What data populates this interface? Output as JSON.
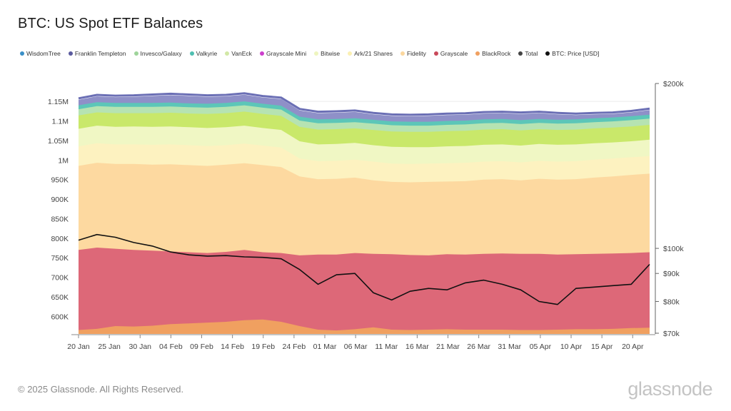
{
  "title": "BTC: US Spot ETF Balances",
  "footer": {
    "copyright": "© 2025 Glassnode. All Rights Reserved.",
    "brand": "glassnode"
  },
  "watermark": "glassnode",
  "legend": [
    {
      "label": "WisdomTree",
      "color": "#3a8fc7"
    },
    {
      "label": "Franklin Templeton",
      "color": "#5a5a9e"
    },
    {
      "label": "Invesco/Galaxy",
      "color": "#9ed49a"
    },
    {
      "label": "Valkyrie",
      "color": "#4fbfb1"
    },
    {
      "label": "VanEck",
      "color": "#d2e8a6"
    },
    {
      "label": "Grayscale Mini",
      "color": "#cc3fcc"
    },
    {
      "label": "Bitwise",
      "color": "#eef5bf"
    },
    {
      "label": "Ark/21 Shares",
      "color": "#fbf0b3"
    },
    {
      "label": "Fidelity",
      "color": "#fbd79e"
    },
    {
      "label": "Grayscale",
      "color": "#c9495a"
    },
    {
      "label": "BlackRock",
      "color": "#f0a060"
    },
    {
      "label": "Total",
      "color": "#444444"
    },
    {
      "label": "BTC: Price [USD]",
      "color": "#111111"
    }
  ],
  "chart_data": {
    "type": "area",
    "stacked": true,
    "x_ticks": [
      "20 Jan",
      "25 Jan",
      "30 Jan",
      "04 Feb",
      "09 Feb",
      "14 Feb",
      "19 Feb",
      "24 Feb",
      "01 Mar",
      "06 Mar",
      "11 Mar",
      "16 Mar",
      "21 Mar",
      "26 Mar",
      "31 Mar",
      "05 Apr",
      "10 Apr",
      "15 Apr",
      "20 Apr"
    ],
    "y_left_ticks": [
      "600K",
      "650K",
      "700K",
      "750K",
      "800K",
      "850K",
      "900K",
      "950K",
      "1M",
      "1.05M",
      "1.1M",
      "1.15M"
    ],
    "y_left_range": [
      555000,
      1205000
    ],
    "y_right_ticks": [
      "$70k",
      "$80k",
      "$90k",
      "$100k",
      "$200k"
    ],
    "y_right_values": [
      70000,
      80000,
      90000,
      100000,
      200000
    ],
    "y_right_scale": "log",
    "x": [
      "20 Jan",
      "23 Jan",
      "26 Jan",
      "29 Jan",
      "01 Feb",
      "04 Feb",
      "07 Feb",
      "10 Feb",
      "13 Feb",
      "16 Feb",
      "19 Feb",
      "22 Feb",
      "25 Feb",
      "28 Feb",
      "03 Mar",
      "06 Mar",
      "09 Mar",
      "12 Mar",
      "15 Mar",
      "18 Mar",
      "21 Mar",
      "24 Mar",
      "27 Mar",
      "30 Mar",
      "02 Apr",
      "05 Apr",
      "08 Apr",
      "11 Apr",
      "14 Apr",
      "17 Apr",
      "20 Apr",
      "22 Apr"
    ],
    "series": [
      {
        "name": "BlackRock",
        "color": "#f0a060",
        "values": [
          565000,
          568000,
          575000,
          574000,
          576000,
          580000,
          582000,
          584000,
          586000,
          590000,
          592000,
          586000,
          575000,
          566000,
          564000,
          567000,
          572000,
          566000,
          565000,
          566000,
          567000,
          566000,
          566000,
          566000,
          565000,
          565000,
          566000,
          567000,
          567000,
          568000,
          570000,
          571000
        ]
      },
      {
        "name": "Grayscale",
        "color": "#dd6878",
        "values": [
          770000,
          776000,
          773000,
          770000,
          768000,
          766000,
          764000,
          762000,
          765000,
          770000,
          764000,
          762000,
          756000,
          758000,
          758000,
          762000,
          760000,
          759000,
          757000,
          756000,
          759000,
          758000,
          760000,
          761000,
          760000,
          760000,
          758000,
          759000,
          760000,
          761000,
          762000,
          764000
        ]
      },
      {
        "name": "Fidelity",
        "color": "#fdd9a0",
        "values": [
          985000,
          993000,
          990000,
          990000,
          988000,
          989000,
          987000,
          985000,
          988000,
          992000,
          987000,
          982000,
          958000,
          951000,
          952000,
          955000,
          948000,
          944000,
          943000,
          944000,
          945000,
          946000,
          950000,
          951000,
          948000,
          952000,
          950000,
          951000,
          955000,
          958000,
          962000,
          965000
        ]
      },
      {
        "name": "Ark/21 Shares",
        "color": "#fdf2c0",
        "values": [
          1035000,
          1043000,
          1040000,
          1040000,
          1039000,
          1040000,
          1038000,
          1036000,
          1038000,
          1042000,
          1037000,
          1032000,
          1004000,
          997000,
          998000,
          1001000,
          996000,
          991000,
          990000,
          991000,
          992000,
          993000,
          996000,
          997000,
          994000,
          998000,
          996000,
          997000,
          1001000,
          1004000,
          1007000,
          1010000
        ]
      },
      {
        "name": "Bitwise",
        "color": "#f0f7c4",
        "values": [
          1080000,
          1088000,
          1085000,
          1086000,
          1085000,
          1086000,
          1084000,
          1082000,
          1084000,
          1088000,
          1082000,
          1077000,
          1048000,
          1040000,
          1041000,
          1044000,
          1038000,
          1034000,
          1033000,
          1033000,
          1035000,
          1036000,
          1039000,
          1040000,
          1037000,
          1041000,
          1039000,
          1040000,
          1043000,
          1045000,
          1048000,
          1052000
        ]
      },
      {
        "name": "VanEck",
        "color": "#c9e86a",
        "values": [
          1114000,
          1122000,
          1120000,
          1120000,
          1120000,
          1121000,
          1119000,
          1118000,
          1120000,
          1124000,
          1118000,
          1113000,
          1085000,
          1078000,
          1079000,
          1081000,
          1077000,
          1073000,
          1072000,
          1072000,
          1074000,
          1075000,
          1078000,
          1079000,
          1076000,
          1079000,
          1077000,
          1078000,
          1081000,
          1083000,
          1086000,
          1090000
        ]
      },
      {
        "name": "Valkyrie",
        "color": "#b6e3b2",
        "values": [
          1130000,
          1138000,
          1136000,
          1136000,
          1136000,
          1137000,
          1135000,
          1134000,
          1136000,
          1140000,
          1134000,
          1129000,
          1101000,
          1094000,
          1095000,
          1097000,
          1093000,
          1089000,
          1088000,
          1088000,
          1090000,
          1091000,
          1094000,
          1095000,
          1092000,
          1095000,
          1093000,
          1094000,
          1097000,
          1099000,
          1102000,
          1106000
        ]
      },
      {
        "name": "Invesco/Galaxy",
        "color": "#5cc6b8",
        "values": [
          1140000,
          1148000,
          1146000,
          1146000,
          1146000,
          1147000,
          1145000,
          1144000,
          1146000,
          1150000,
          1144000,
          1139000,
          1111000,
          1104000,
          1105000,
          1107000,
          1103000,
          1099000,
          1098000,
          1098000,
          1100000,
          1101000,
          1104000,
          1105000,
          1102000,
          1105000,
          1103000,
          1104000,
          1107000,
          1109000,
          1112000,
          1116000
        ]
      },
      {
        "name": "Franklin Templeton",
        "color": "#8f90c8",
        "values": [
          1154000,
          1163000,
          1161000,
          1162000,
          1164000,
          1166000,
          1164000,
          1162000,
          1163000,
          1167000,
          1160000,
          1156000,
          1127000,
          1120000,
          1121000,
          1123000,
          1117000,
          1113000,
          1112000,
          1113000,
          1115000,
          1116000,
          1119000,
          1120000,
          1118000,
          1120000,
          1117000,
          1115000,
          1117000,
          1118000,
          1122000,
          1128000
        ]
      }
    ],
    "btc_price": [
      103500,
      106000,
      104800,
      102500,
      101000,
      98500,
      97300,
      96800,
      97000,
      96500,
      96300,
      95700,
      91500,
      86000,
      89500,
      90000,
      83000,
      80500,
      83500,
      84500,
      84000,
      86500,
      87500,
      86000,
      84000,
      80000,
      79000,
      84500,
      85000,
      85500,
      86000,
      93500
    ]
  }
}
